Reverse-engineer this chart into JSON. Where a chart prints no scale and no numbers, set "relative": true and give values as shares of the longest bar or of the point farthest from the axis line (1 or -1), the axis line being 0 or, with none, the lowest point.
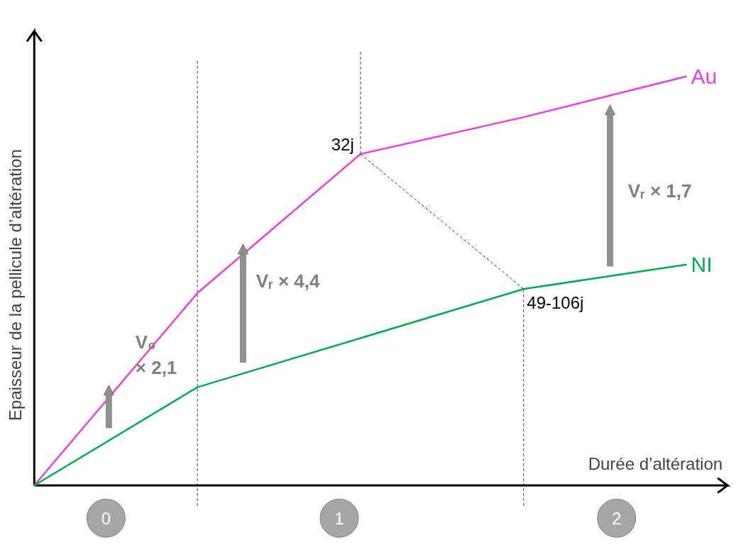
{
  "chart_data": {
    "type": "line",
    "relative": true,
    "xlabel": "Durée d’altération",
    "ylabel": "Epaisseur de la pellicule d’altération",
    "categories": [
      null,
      null,
      null,
      null,
      null
    ],
    "series": [
      {
        "name": "Au",
        "color": "#f03ce0",
        "values": [
          0,
          0.47,
          0.81,
          0.9,
          1.0
        ]
      },
      {
        "name": "NI",
        "color": "#00b050",
        "values": [
          0,
          0.24,
          0.36,
          0.48,
          0.54
        ]
      },
      {
        "color": "#404040",
        "values": [
          null,
          null,
          0.81,
          0.48,
          null
        ],
        "line_style": "dashed"
      }
    ],
    "annotations": [
      "32j",
      "49-106j",
      "V₀\n× 2,1",
      "Vᵣ × 4,4",
      "Vᵣ × 1,7",
      "0",
      "1",
      "2"
    ],
    "marker": "none",
    "line_style": "solid"
  }
}
